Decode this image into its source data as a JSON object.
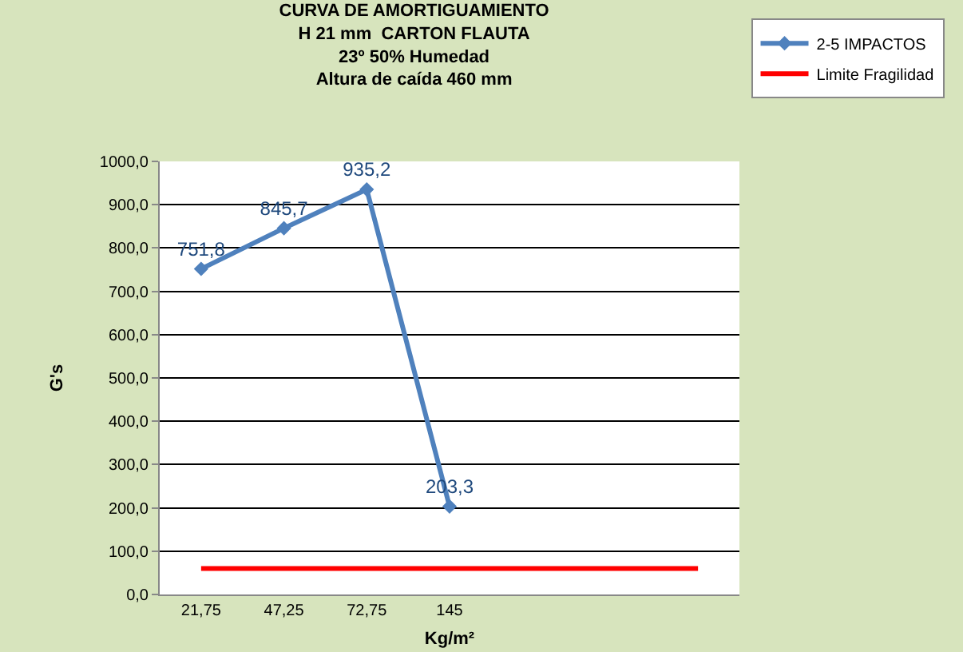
{
  "chart_data": {
    "type": "line",
    "title": "CURVA DE AMORTIGUAMIENTO\nH 21 mm  CARTON FLAUTA\n23º 50% Humedad\nAltura de caída 460 mm",
    "xlabel": "Kg/m²",
    "ylabel": "G's",
    "categories": [
      "21,75",
      "47,25",
      "72,75",
      "145",
      null,
      null,
      null
    ],
    "series": [
      {
        "name": "2-5 IMPACTOS",
        "color": "#4f81bd",
        "values": [
          751.8,
          845.7,
          935.2,
          203.3,
          null,
          null,
          null
        ],
        "value_labels": [
          "751,8",
          "845,7",
          "935,2",
          "203,3",
          null,
          null,
          null
        ],
        "marker": "diamond"
      },
      {
        "name": "Limite Fragilidad",
        "color": "#ff0000",
        "values": [
          60,
          60,
          60,
          60,
          60,
          60,
          60
        ],
        "marker": "none"
      }
    ],
    "ylim": [
      0,
      1000
    ],
    "yticks": [
      {
        "value": 0,
        "label": "0,0"
      },
      {
        "value": 100,
        "label": "100,0"
      },
      {
        "value": 200,
        "label": "200,0"
      },
      {
        "value": 300,
        "label": "300,0"
      },
      {
        "value": 400,
        "label": "400,0"
      },
      {
        "value": 500,
        "label": "500,0"
      },
      {
        "value": 600,
        "label": "600,0"
      },
      {
        "value": 700,
        "label": "700,0"
      },
      {
        "value": 800,
        "label": "800,0"
      },
      {
        "value": 900,
        "label": "900,0"
      },
      {
        "value": 1000,
        "label": "1000,0"
      }
    ],
    "grid": "y",
    "legend": "top right"
  }
}
